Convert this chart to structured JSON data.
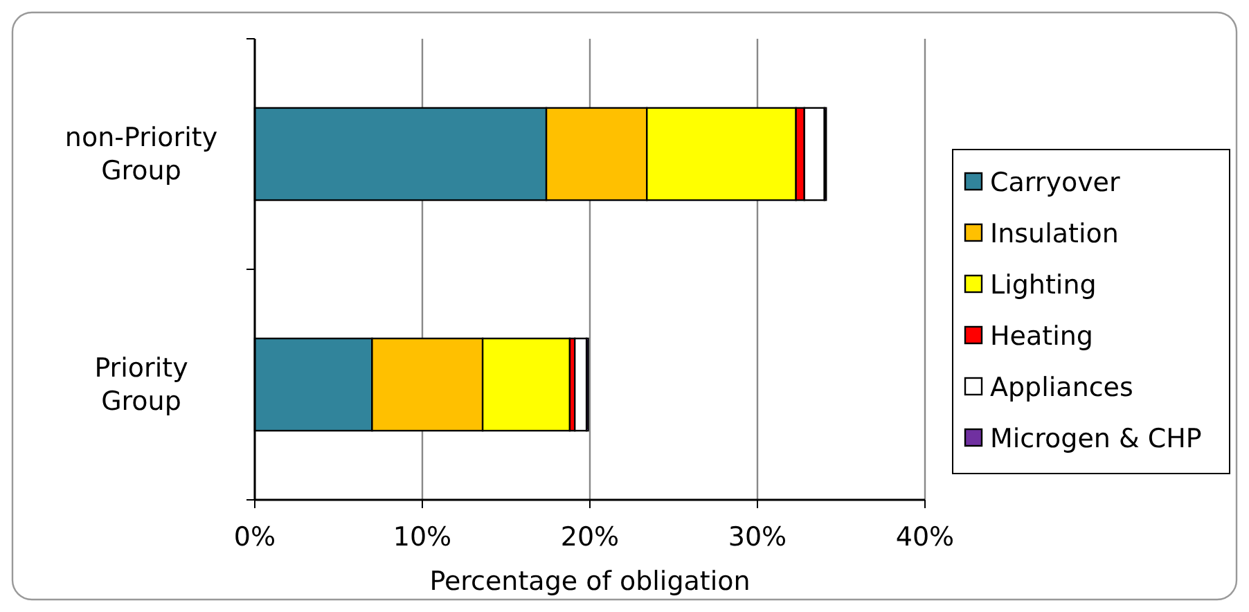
{
  "chart_data": {
    "type": "bar",
    "orientation": "horizontal",
    "stacked": true,
    "xlabel": "Percentage of obligation",
    "categories": [
      "non-Priority Group",
      "Priority Group"
    ],
    "series": [
      {
        "name": "Carryover",
        "color": "#31849b",
        "values": [
          17.4,
          7.0
        ]
      },
      {
        "name": "Insulation",
        "color": "#ffc000",
        "values": [
          6.0,
          6.6
        ]
      },
      {
        "name": "Lighting",
        "color": "#ffff00",
        "values": [
          8.9,
          5.2
        ]
      },
      {
        "name": "Heating",
        "color": "#ff0000",
        "values": [
          0.5,
          0.3
        ]
      },
      {
        "name": "Appliances",
        "color": "#ffffff",
        "values": [
          1.2,
          0.7
        ]
      },
      {
        "name": "Microgen & CHP",
        "color": "#7030a0",
        "values": [
          0.1,
          0.1
        ]
      }
    ],
    "xlim": [
      0,
      40
    ],
    "xticks": [
      {
        "value": 0,
        "label": "0%"
      },
      {
        "value": 10,
        "label": "10%"
      },
      {
        "value": 20,
        "label": "20%"
      },
      {
        "value": 30,
        "label": "30%"
      },
      {
        "value": 40,
        "label": "40%"
      }
    ],
    "grid": "x",
    "legend": "right"
  }
}
